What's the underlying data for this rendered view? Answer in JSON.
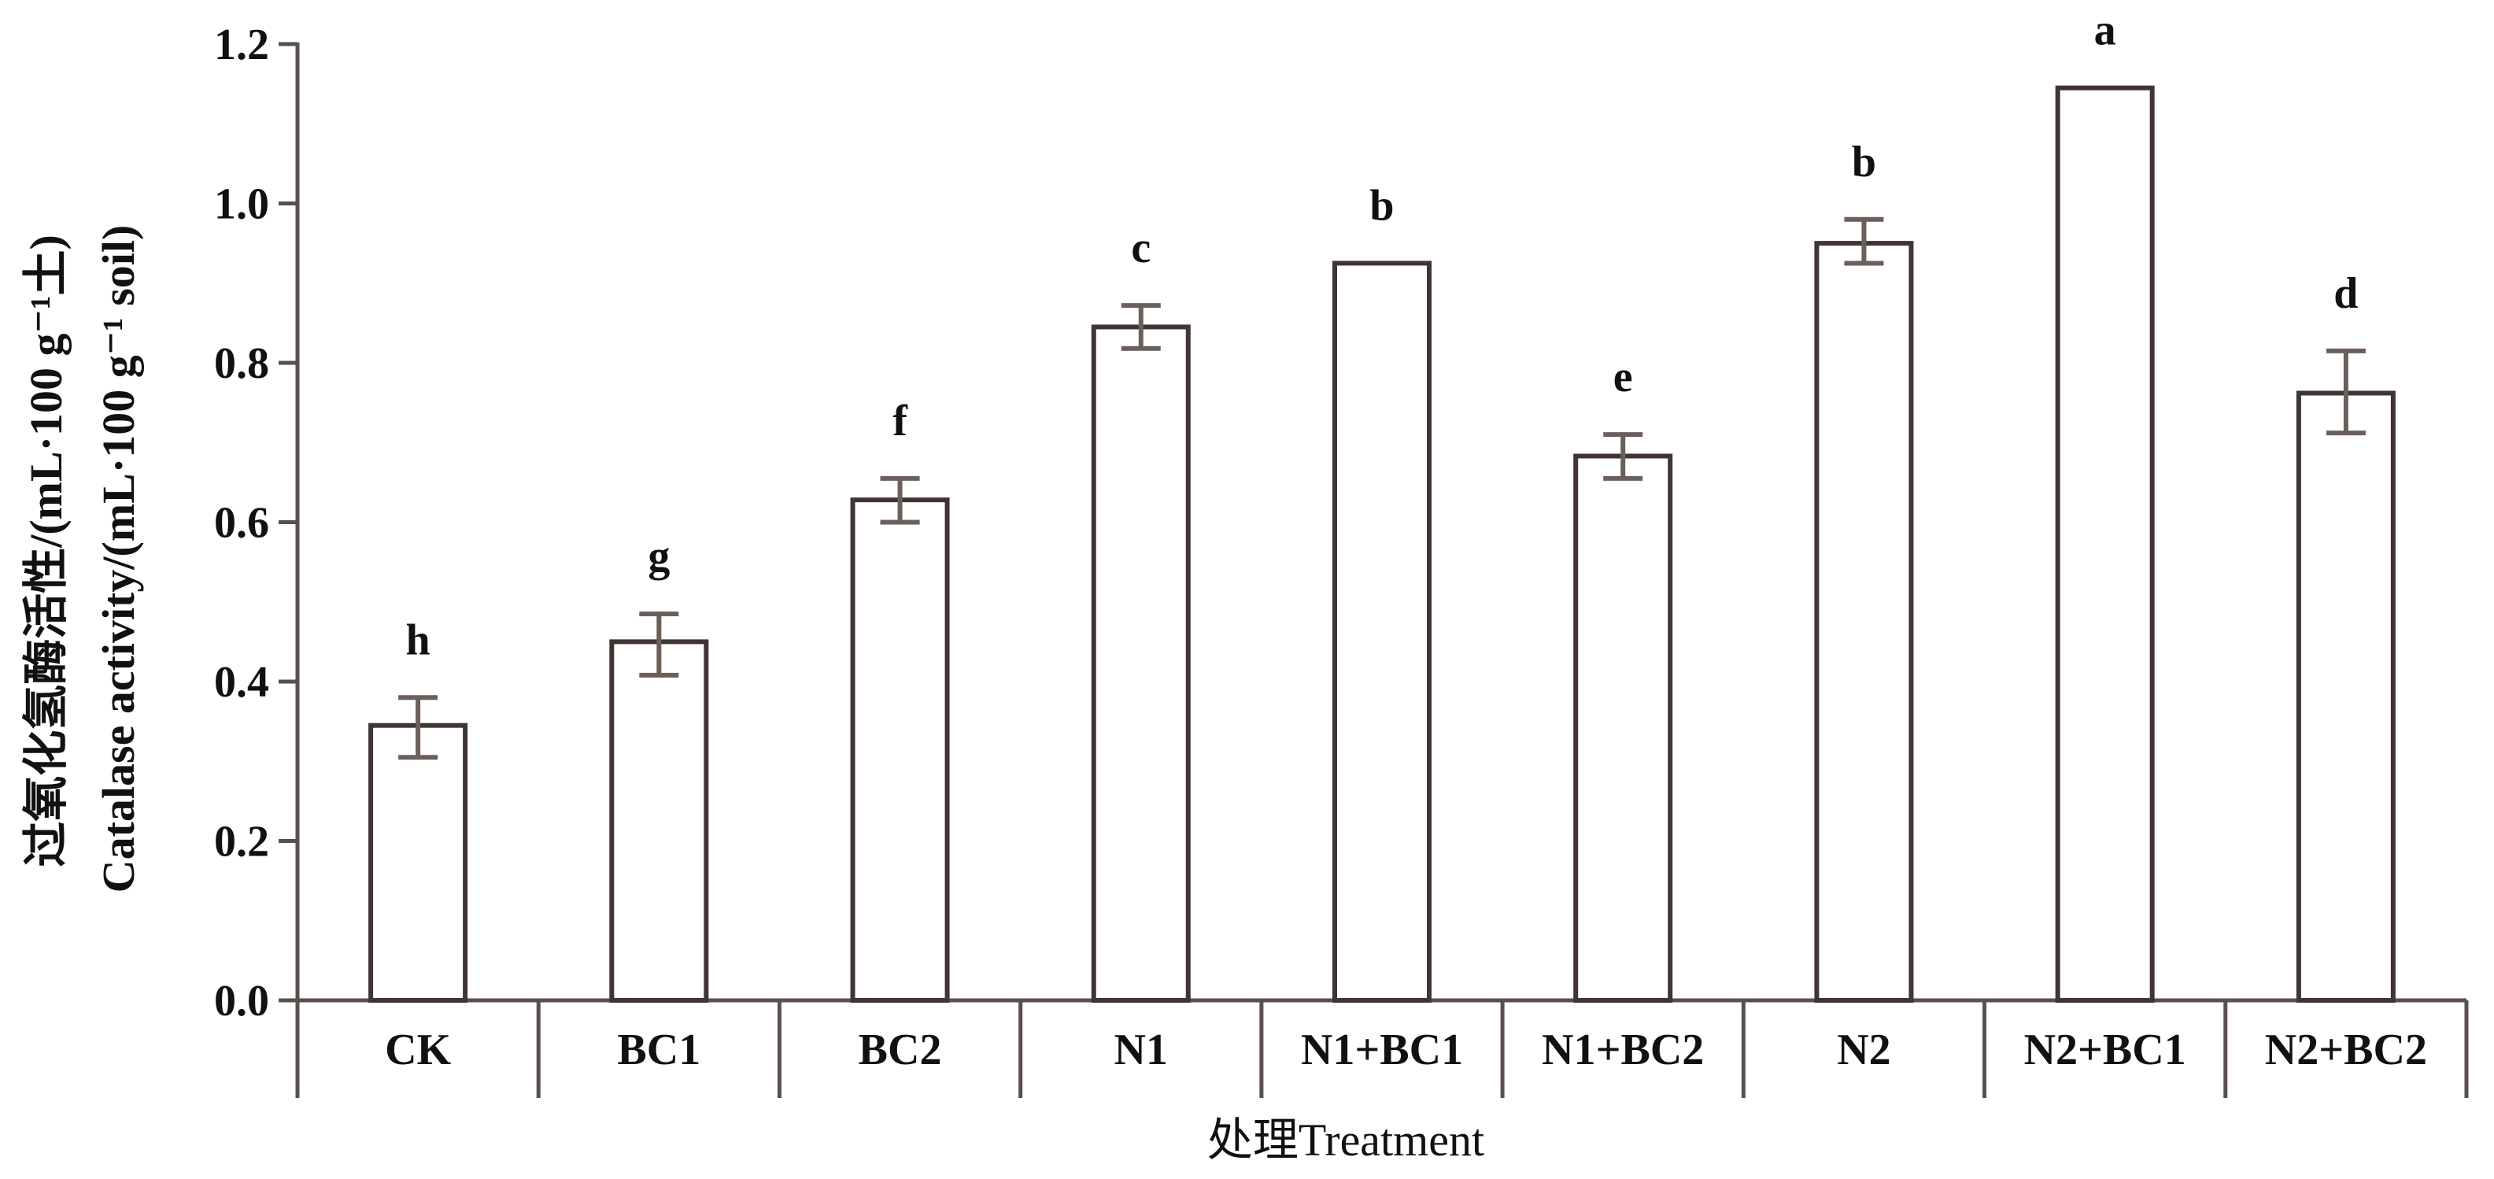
{
  "chart_data": {
    "type": "bar",
    "categories": [
      "CK",
      "BC1",
      "BC2",
      "N1",
      "N1+BC1",
      "N1+BC2",
      "N2",
      "N2+BC1",
      "N2+BC2"
    ],
    "values": [
      0.345,
      0.45,
      0.628,
      0.845,
      0.925,
      0.683,
      0.95,
      1.145,
      0.762
    ],
    "error_low": [
      0.305,
      0.408,
      0.6,
      0.818,
      0.925,
      0.655,
      0.925,
      1.145,
      0.712
    ],
    "error_high": [
      0.38,
      0.485,
      0.655,
      0.872,
      0.925,
      0.71,
      0.98,
      1.145,
      0.815
    ],
    "significance": [
      "h",
      "g",
      "f",
      "c",
      "b",
      "e",
      "b",
      "a",
      "d"
    ],
    "ylim": [
      0.0,
      1.2
    ],
    "yticks": [
      "0.0",
      "0.2",
      "0.4",
      "0.6",
      "0.8",
      "1.0",
      "1.2"
    ],
    "ylabel_line1": "过氧化氢酶活性/(mL·100 g⁻¹土)",
    "ylabel_line2": "Catalase activity/(mL·100 g⁻¹ soil)",
    "xlabel": "处理Treatment",
    "grid": false,
    "legend": "none",
    "colors": {
      "bar_fill": "#ffffff",
      "bar_stroke": "#3f3533",
      "axis": "#5a4f4c",
      "error": "#6b5f5c"
    }
  }
}
